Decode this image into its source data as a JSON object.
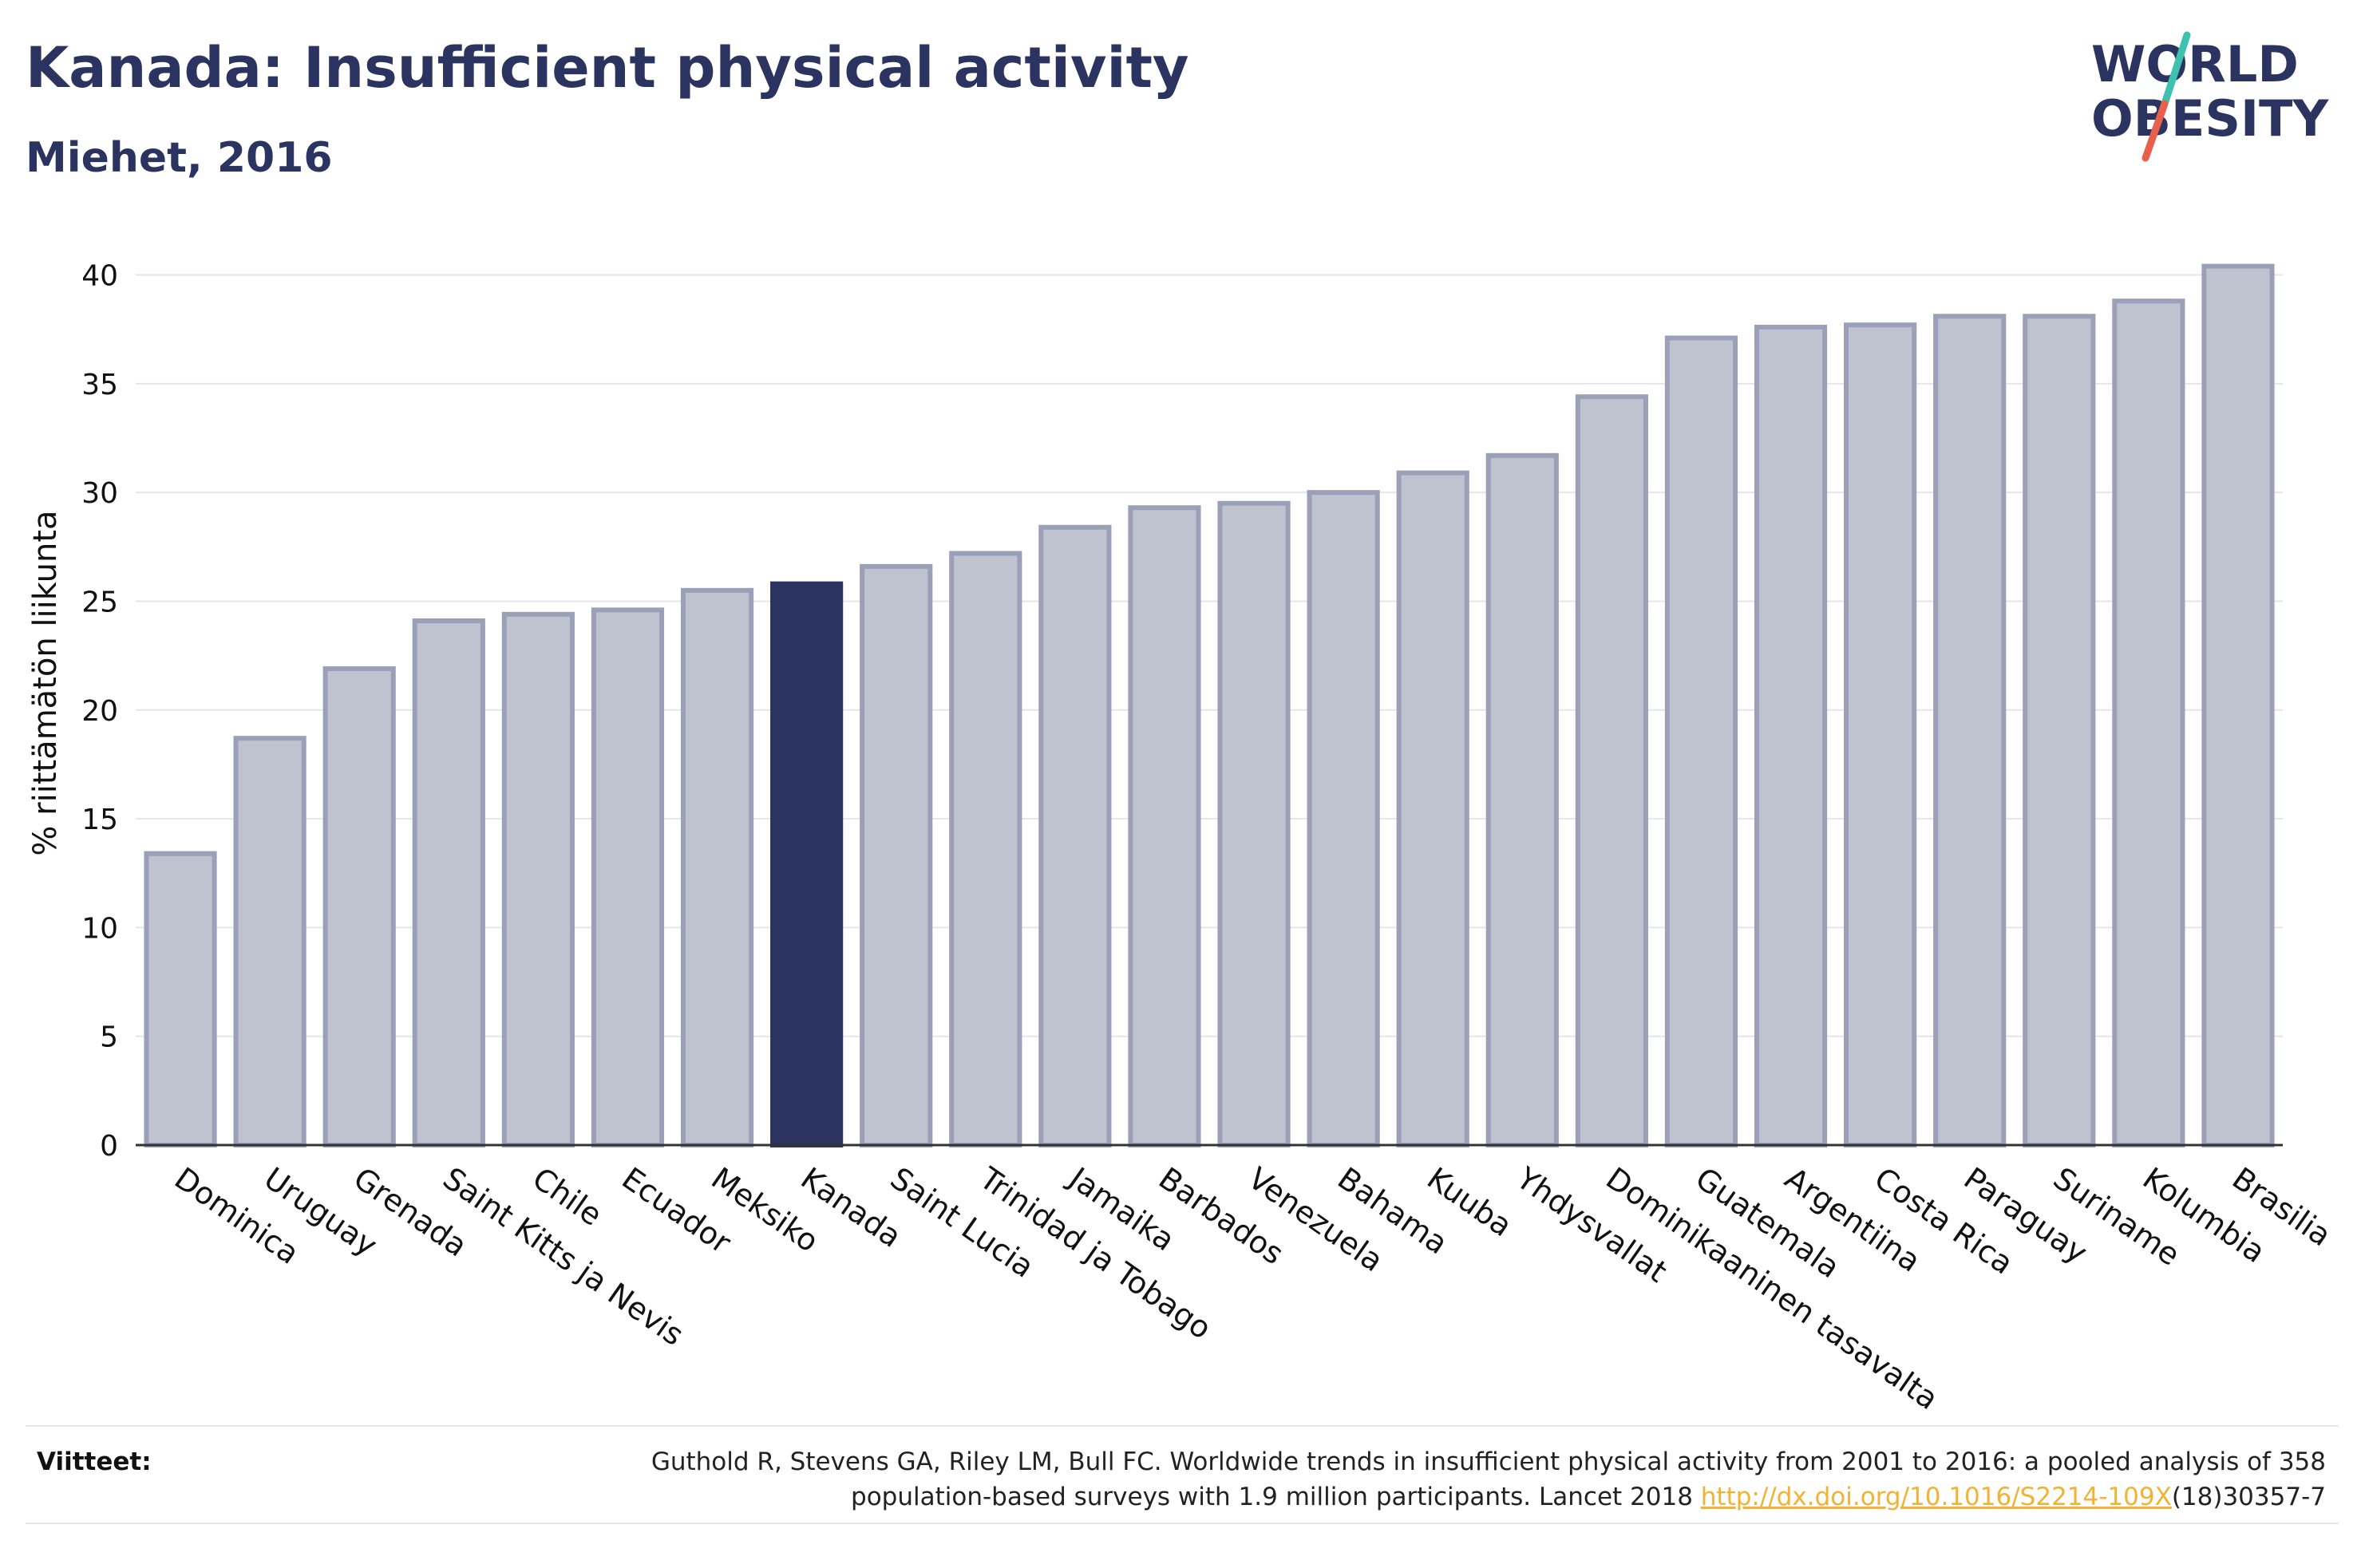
{
  "header": {
    "title": "Kanada: Insufficient physical activity",
    "subtitle": "Miehet, 2016"
  },
  "logo": {
    "line1": "WORLD",
    "line2": "OBESITY",
    "colors": {
      "text": "#2b3460",
      "slash_top": "#3fc1b0",
      "slash_bottom": "#e8604c"
    }
  },
  "chart_data": {
    "type": "bar",
    "title": "",
    "xlabel": "",
    "ylabel": "% riittämätön liikunta",
    "ylim": [
      0,
      42
    ],
    "yticks": [
      0,
      5,
      10,
      15,
      20,
      25,
      30,
      35,
      40
    ],
    "grid": true,
    "highlight": "Kanada",
    "colors": {
      "bar": "#bfc2cf",
      "bar_border": "#9aa0b8",
      "highlight": "#2b3460",
      "grid": "#e6e6ea",
      "axis": "#333333"
    },
    "categories": [
      "Dominica",
      "Uruguay",
      "Grenada",
      "Saint Kitts ja Nevis",
      "Chile",
      "Ecuador",
      "Meksiko",
      "Kanada",
      "Saint Lucia",
      "Trinidad ja Tobago",
      "Jamaika",
      "Barbados",
      "Venezuela",
      "Bahama",
      "Kuuba",
      "Yhdysvallat",
      "Dominikaaninen tasavalta",
      "Guatemala",
      "Argentiina",
      "Costa Rica",
      "Paraguay",
      "Suriname",
      "Kolumbia",
      "Brasilia"
    ],
    "values": [
      13.4,
      18.7,
      21.9,
      24.1,
      24.4,
      24.6,
      25.5,
      25.8,
      26.6,
      27.2,
      28.4,
      29.3,
      29.5,
      30.0,
      30.9,
      31.7,
      34.4,
      37.1,
      37.6,
      37.7,
      38.1,
      38.1,
      38.8,
      40.4
    ]
  },
  "footer": {
    "label": "Viitteet:",
    "text_line1": "Guthold R, Stevens GA, Riley LM, Bull FC. Worldwide trends in insufficient physical activity from 2001 to 2016: a pooled analysis of 358",
    "text_line2_prefix": "population-based surveys with 1.9 million participants. Lancet 2018 ",
    "link_text": "http://dx.doi.org/10.1016/S2214-109X",
    "text_line2_suffix": "(18)30357-7"
  }
}
